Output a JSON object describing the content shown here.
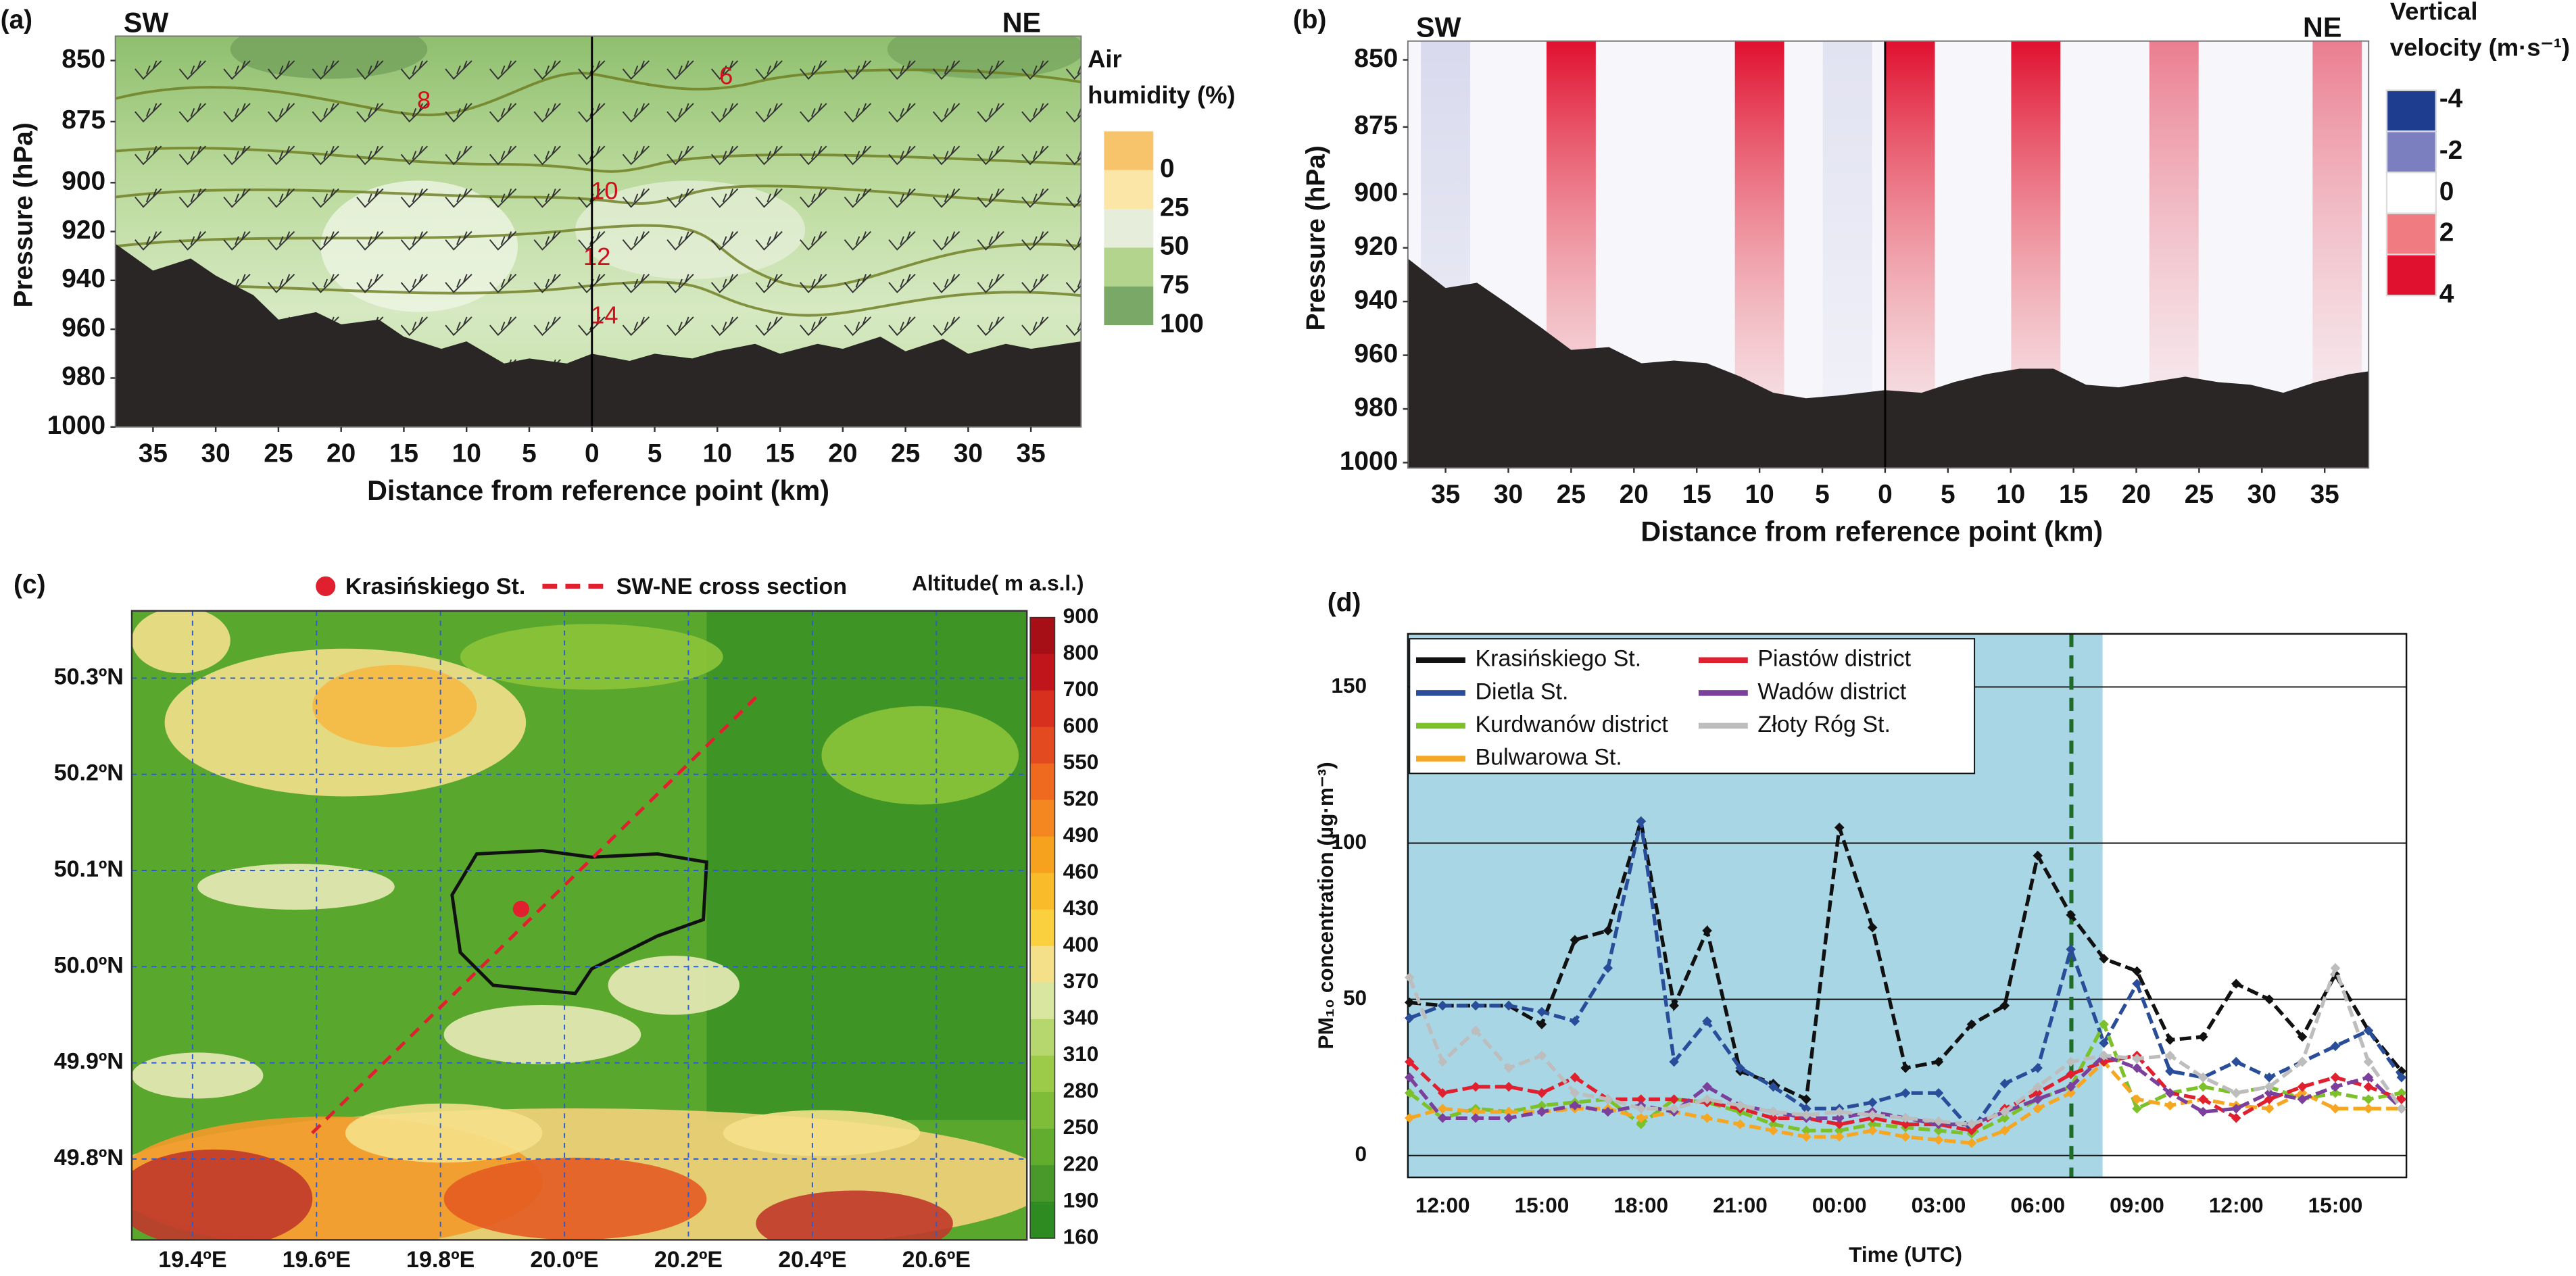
{
  "chart_data": [
    {
      "type": "cross-section",
      "panel": "(a)",
      "left_label": "SW",
      "right_label": "NE",
      "xlabel": "Distance from reference point (km)",
      "ylabel": "Pressure (hPa)",
      "xlim": [
        -38,
        39
      ],
      "ylim": [
        1000,
        840
      ],
      "xticks": [
        {
          "value": -35,
          "label": "35"
        },
        {
          "value": -30,
          "label": "30"
        },
        {
          "value": -25,
          "label": "25"
        },
        {
          "value": -20,
          "label": "20"
        },
        {
          "value": -15,
          "label": "15"
        },
        {
          "value": -10,
          "label": "10"
        },
        {
          "value": -5,
          "label": "5"
        },
        0,
        5,
        10,
        15,
        20,
        25,
        30,
        35
      ],
      "yticks": [
        850,
        875,
        900,
        920,
        940,
        960,
        980,
        1000
      ],
      "legend_title": [
        "Air",
        "humidity (%)"
      ],
      "legend": {
        "labels": [
          0,
          25,
          50,
          75,
          100
        ],
        "colors": [
          "#f7c36b",
          "#fbe6a8",
          "#e6eedb",
          "#b3d48d",
          "#7aa866"
        ]
      },
      "contours": [
        {
          "value": 8,
          "x": -13.4,
          "p": 867
        },
        {
          "value": 6,
          "x": 10.7,
          "p": 857
        },
        {
          "value": 10,
          "x": 1,
          "p": 904
        },
        {
          "value": 12,
          "x": 0.4,
          "p": 931
        },
        {
          "value": 14,
          "x": 1,
          "p": 955
        }
      ],
      "terrain": {
        "x": [
          -38,
          -35,
          -32,
          -30,
          -27,
          -25,
          -22,
          -20,
          -17,
          -15,
          -12,
          -10,
          -7,
          -5,
          -2,
          0,
          3,
          5,
          8,
          10,
          13,
          15,
          18,
          20,
          23,
          25,
          28,
          30,
          33,
          35,
          39
        ],
        "p": [
          925,
          936,
          931,
          938,
          946,
          956,
          953,
          958,
          956,
          963,
          968,
          965,
          974,
          972,
          974,
          970,
          973,
          970,
          972,
          969,
          966,
          970,
          966,
          968,
          963,
          969,
          964,
          970,
          966,
          968,
          965
        ]
      }
    },
    {
      "type": "cross-section",
      "panel": "(b)",
      "left_label": "SW",
      "right_label": "NE",
      "xlabel": "Distance from reference point (km)",
      "ylabel": "Pressure (hPa)",
      "xlim": [
        -38,
        38.5
      ],
      "ylim": [
        1002,
        843
      ],
      "xticks": [
        {
          "value": -35,
          "label": "35"
        },
        {
          "value": -30,
          "label": "30"
        },
        {
          "value": -25,
          "label": "25"
        },
        {
          "value": -20,
          "label": "20"
        },
        {
          "value": -15,
          "label": "15"
        },
        {
          "value": -10,
          "label": "10"
        },
        {
          "value": -5,
          "label": "5"
        },
        0,
        5,
        10,
        15,
        20,
        25,
        30,
        35
      ],
      "yticks": [
        850,
        875,
        900,
        920,
        940,
        960,
        980,
        1000
      ],
      "legend_title": [
        "Vertical",
        "velocity (m·s⁻¹)"
      ],
      "legend": {
        "labels": [
          -4,
          -2,
          0,
          2,
          4
        ],
        "colors": [
          "#1f3d8f",
          "#7b7fbf",
          "#ffffff",
          "#f07b80",
          "#e0102f"
        ]
      },
      "vertical_velocity": [
        {
          "x": -35,
          "value": -1
        },
        {
          "x": -25,
          "value": 4
        },
        {
          "x": -10,
          "value": 4
        },
        {
          "x": -3,
          "value": -0.5
        },
        {
          "x": 2,
          "value": 4
        },
        {
          "x": 12,
          "value": 3.5
        },
        {
          "x": 23,
          "value": 1.5
        },
        {
          "x": 36,
          "value": 1.5
        }
      ],
      "terrain": {
        "x": [
          -38,
          -35,
          -32.5,
          -30,
          -27.3,
          -25,
          -22,
          -19.4,
          -16.8,
          -14.2,
          -11.5,
          -8.9,
          -6.3,
          -3.7,
          0,
          2.9,
          5.5,
          8.1,
          10.7,
          13.4,
          16,
          18.6,
          21.2,
          23.9,
          26.5,
          29.1,
          31.7,
          34.3,
          37,
          38.5
        ],
        "p": [
          924,
          935,
          933,
          941,
          950,
          958,
          957,
          963,
          962,
          963,
          968,
          974,
          976,
          975,
          973,
          974,
          970,
          967,
          965,
          965,
          971,
          972,
          970,
          968,
          970,
          971,
          974,
          970,
          967,
          966
        ]
      }
    },
    {
      "type": "map",
      "panel": "(c)",
      "xlim": [
        19.302,
        20.746
      ],
      "ylim": [
        49.716,
        50.37
      ],
      "xticks": [
        {
          "value": 19.4,
          "label": "19.4ºE"
        },
        {
          "value": 19.6,
          "label": "19.6ºE"
        },
        {
          "value": 19.8,
          "label": "19.8ºE"
        },
        {
          "value": 20.0,
          "label": "20.0ºE"
        },
        {
          "value": 20.2,
          "label": "20.2ºE"
        },
        {
          "value": 20.4,
          "label": "20.4ºE"
        },
        {
          "value": 20.6,
          "label": "20.6ºE"
        }
      ],
      "yticks": [
        {
          "value": 50.3,
          "label": "50.3ºN"
        },
        {
          "value": 50.2,
          "label": "50.2ºN"
        },
        {
          "value": 50.1,
          "label": "50.1ºN"
        },
        {
          "value": 50.0,
          "label": "50.0ºN"
        },
        {
          "value": 49.9,
          "label": "49.9ºN"
        },
        {
          "value": 49.8,
          "label": "49.8ºN"
        }
      ],
      "grid": true,
      "point": {
        "name": "Krasińskiego St.",
        "lon": 19.93,
        "lat": 50.06,
        "color": "#e0202e"
      },
      "line": {
        "name": "SW-NE cross section",
        "lon": [
          19.593,
          20.309
        ],
        "lat": [
          49.827,
          50.28
        ],
        "color": "#e0202e"
      },
      "colorbar": {
        "title": "Altitude( m a.s.l.)",
        "ticks": [
          900,
          800,
          700,
          600,
          550,
          520,
          490,
          460,
          430,
          400,
          370,
          340,
          310,
          280,
          250,
          220,
          190,
          160
        ],
        "colors": [
          "#a50f15",
          "#c0161b",
          "#d7301f",
          "#e34a1f",
          "#ef6a1f",
          "#f4871f",
          "#f7a21f",
          "#f9bb2a",
          "#fbd03f",
          "#f5e08a",
          "#d9e6a0",
          "#b6d66e",
          "#9ccb4a",
          "#7fbd38",
          "#62ad2e",
          "#48992a",
          "#2e8b22"
        ]
      }
    },
    {
      "type": "line",
      "panel": "(d)",
      "xlabel": "Time (UTC)",
      "ylabel": "PM₁₀ concentration (µg·m⁻³)",
      "ylim": [
        -7,
        167
      ],
      "yticks": [
        0,
        50,
        100,
        150
      ],
      "grid": true,
      "categories": [
        null,
        "12:00",
        null,
        null,
        "15:00",
        null,
        null,
        "18:00",
        null,
        null,
        "21:00",
        null,
        null,
        "00:00",
        null,
        null,
        "03:00",
        null,
        null,
        "06:00",
        null,
        null,
        "09:00",
        null,
        null,
        "12:00",
        null,
        null,
        "15:00",
        null,
        null
      ],
      "series": [
        {
          "name": "Krasińskiego St.",
          "color": "#111111",
          "values": [
            49,
            48,
            48,
            48,
            42,
            69,
            72,
            107,
            48,
            72,
            27,
            23,
            18,
            105,
            73,
            28,
            30,
            42,
            48,
            96,
            77,
            63,
            59,
            37,
            38,
            55,
            50,
            38,
            58,
            40,
            27
          ]
        },
        {
          "name": "Dietla St.",
          "color": "#2a4d9a",
          "values": [
            44,
            48,
            48,
            48,
            46,
            43,
            60,
            107,
            30,
            43,
            28,
            22,
            15,
            15,
            17,
            20,
            20,
            8,
            23,
            28,
            66,
            36,
            55,
            27,
            25,
            30,
            25,
            30,
            35,
            40,
            25
          ]
        },
        {
          "name": "Kurdwanów district",
          "color": "#7cc02a",
          "values": [
            20,
            12,
            15,
            14,
            16,
            17,
            18,
            10,
            18,
            17,
            14,
            10,
            8,
            8,
            10,
            9,
            8,
            7,
            12,
            18,
            22,
            42,
            15,
            20,
            22,
            20,
            22,
            18,
            20,
            18,
            20
          ]
        },
        {
          "name": "Bulwarowa St.",
          "color": "#f5a623",
          "values": [
            12,
            15,
            14,
            14,
            14,
            15,
            15,
            12,
            14,
            12,
            10,
            8,
            6,
            6,
            8,
            6,
            5,
            4,
            8,
            15,
            20,
            30,
            18,
            16,
            18,
            16,
            15,
            20,
            15,
            15,
            15
          ]
        },
        {
          "name": "Piastów district",
          "color": "#e0202e",
          "values": [
            30,
            20,
            22,
            22,
            20,
            25,
            18,
            18,
            18,
            17,
            15,
            12,
            12,
            10,
            12,
            10,
            10,
            8,
            15,
            20,
            26,
            30,
            32,
            20,
            18,
            12,
            18,
            22,
            25,
            22,
            18
          ]
        },
        {
          "name": "Wadów district",
          "color": "#7b3f9c",
          "values": [
            25,
            12,
            12,
            12,
            14,
            16,
            14,
            16,
            14,
            22,
            16,
            14,
            12,
            12,
            14,
            12,
            10,
            10,
            14,
            18,
            22,
            32,
            28,
            20,
            14,
            15,
            20,
            18,
            22,
            25,
            15
          ]
        },
        {
          "name": "Złoty Róg St.",
          "color": "#bdbdbd",
          "values": [
            57,
            30,
            40,
            28,
            32,
            20,
            18,
            15,
            15,
            18,
            16,
            14,
            13,
            14,
            13,
            12,
            11,
            10,
            14,
            22,
            30,
            32,
            31,
            32,
            25,
            20,
            22,
            30,
            60,
            30,
            15
          ]
        }
      ]
    }
  ]
}
